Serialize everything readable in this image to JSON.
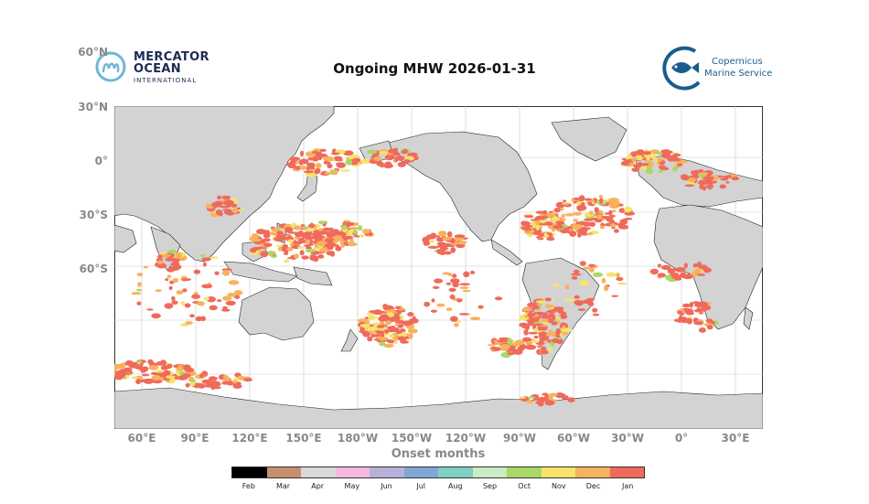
{
  "title": "Ongoing MHW 2026-01-31",
  "logos": {
    "mercator_line1": "MERCATOR",
    "mercator_line2": "OCEAN",
    "mercator_line3": "INTERNATIONAL",
    "copernicus_line1": "Copernicus",
    "copernicus_line2": "Marine Service"
  },
  "map": {
    "projection": "plate-carree",
    "lon_range_note": "centered on 180°",
    "lat_ticks": [
      "60°N",
      "30°N",
      "0°",
      "30°S",
      "60°S"
    ],
    "lon_ticks": [
      "60°E",
      "90°E",
      "120°E",
      "150°E",
      "180°W",
      "150°W",
      "120°W",
      "90°W",
      "60°W",
      "30°W",
      "0°",
      "30°E"
    ],
    "gridlines": true,
    "land_color": "#d3d3d3",
    "ocean_color": "#ffffff"
  },
  "xaxis_label": "Onset months",
  "colorbar": {
    "labels": [
      "Feb",
      "Mar",
      "Apr",
      "May",
      "Jun",
      "Jul",
      "Aug",
      "Sep",
      "Oct",
      "Nov",
      "Dec",
      "Jan"
    ],
    "colors": [
      "#000000",
      "#c98e6d",
      "#d9d9d9",
      "#f5b8e0",
      "#b9b0d9",
      "#7da9d4",
      "#7fcfc2",
      "#c9ecc3",
      "#a9d867",
      "#f6e46a",
      "#f7b25e",
      "#f06a5c"
    ]
  }
}
